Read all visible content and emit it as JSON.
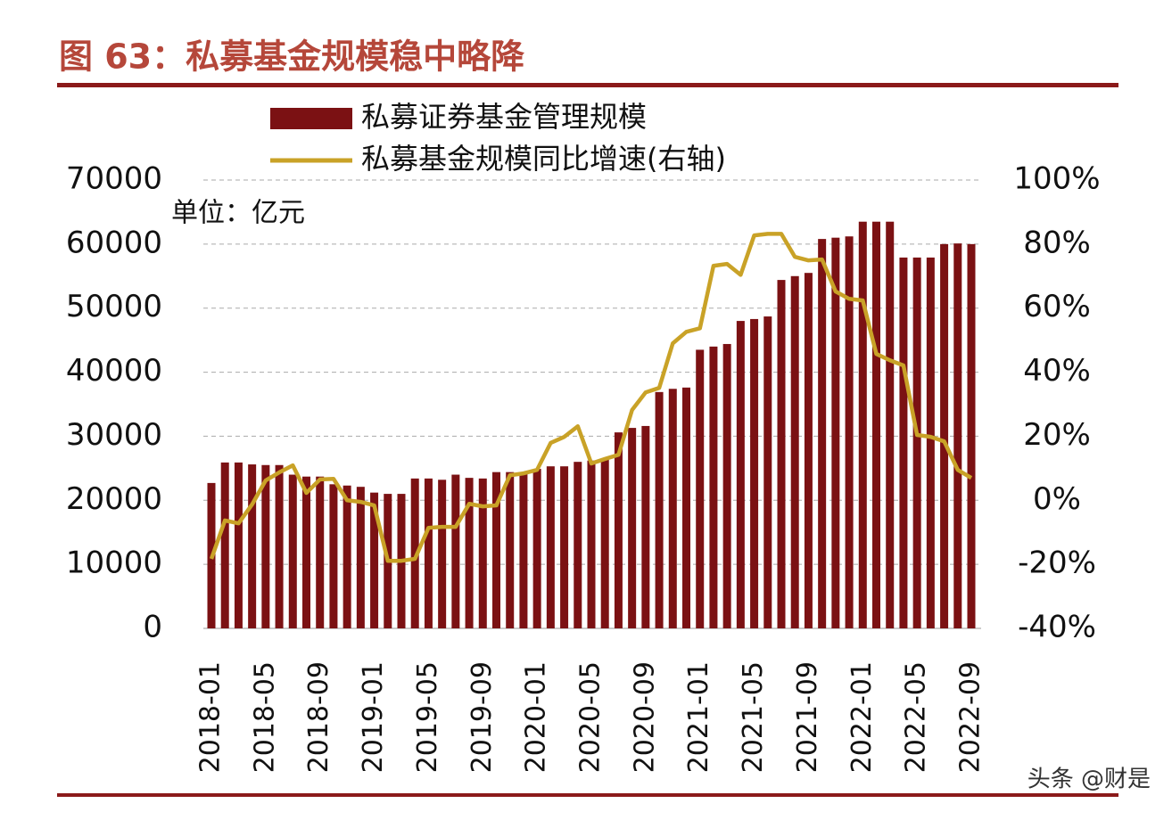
{
  "chart_data": {
    "type": "bar",
    "title": "图 63：私募基金规模稳中略降",
    "unit_label": "单位：亿元",
    "watermark": "头条 @财是",
    "categories": [
      "2018-01",
      null,
      null,
      null,
      "2018-05",
      null,
      null,
      null,
      "2018-09",
      null,
      null,
      null,
      "2019-01",
      null,
      null,
      null,
      "2019-05",
      null,
      null,
      null,
      "2019-09",
      null,
      null,
      null,
      "2020-01",
      null,
      null,
      null,
      "2020-05",
      null,
      null,
      null,
      "2020-09",
      null,
      null,
      null,
      "2021-01",
      null,
      null,
      null,
      "2021-05",
      null,
      null,
      null,
      "2021-09",
      null,
      null,
      null,
      "2022-01",
      null,
      null,
      null,
      "2022-05",
      null,
      null,
      null,
      "2022-09"
    ],
    "series": [
      {
        "name": "私募证券基金管理规模",
        "type": "bar",
        "color": "#7b1113",
        "values": [
          22700,
          25900,
          25900,
          25600,
          25500,
          25500,
          24000,
          23700,
          23700,
          22500,
          22300,
          22100,
          21200,
          21000,
          21000,
          23400,
          23400,
          23200,
          24000,
          23500,
          23400,
          24400,
          24400,
          24400,
          24900,
          25300,
          25300,
          26000,
          26200,
          26400,
          30600,
          31300,
          31600,
          36900,
          37400,
          37600,
          43500,
          44000,
          44400,
          48000,
          48300,
          48700,
          54400,
          55000,
          55500,
          60800,
          61000,
          61200,
          63500,
          63500,
          63500,
          57900,
          57900,
          57900,
          60000,
          60100,
          60000
        ]
      },
      {
        "name": "私募基金规模同比增速(右轴)",
        "type": "line",
        "axis": "y2",
        "color": "#c9a227",
        "values": [
          -18.3,
          -6.3,
          -7.2,
          -1.3,
          6.2,
          8.7,
          10.9,
          2.3,
          6.5,
          6.7,
          0,
          -0.5,
          -1.6,
          -18.9,
          -18.9,
          -18.3,
          -8.6,
          -8.3,
          -8.3,
          -1.1,
          -1.9,
          -1.6,
          7.8,
          8.4,
          9.5,
          17.9,
          19.8,
          23.1,
          11.5,
          12.9,
          14.2,
          28.2,
          33.7,
          35.1,
          49,
          52.6,
          53.7,
          73.2,
          73.8,
          70.4,
          82.7,
          83.2,
          83.2,
          76,
          74.9,
          75.2,
          65.2,
          62.9,
          62.4,
          45.7,
          43.7,
          42.1,
          20.4,
          19.8,
          18.4,
          9.5,
          7
        ]
      }
    ],
    "ylim": [
      0,
      70000
    ],
    "yticks": [
      0,
      10000,
      20000,
      30000,
      40000,
      50000,
      60000,
      70000
    ],
    "y2lim": [
      -40,
      100
    ],
    "y2ticks": [
      {
        "value": -40,
        "label": "-40%"
      },
      {
        "value": -20,
        "label": "-20%"
      },
      {
        "value": 0,
        "label": "0%"
      },
      {
        "value": 20,
        "label": "20%"
      },
      {
        "value": 40,
        "label": "40%"
      },
      {
        "value": 60,
        "label": "60%"
      },
      {
        "value": 80,
        "label": "80%"
      },
      {
        "value": 100,
        "label": "100%"
      }
    ],
    "grid": true
  }
}
